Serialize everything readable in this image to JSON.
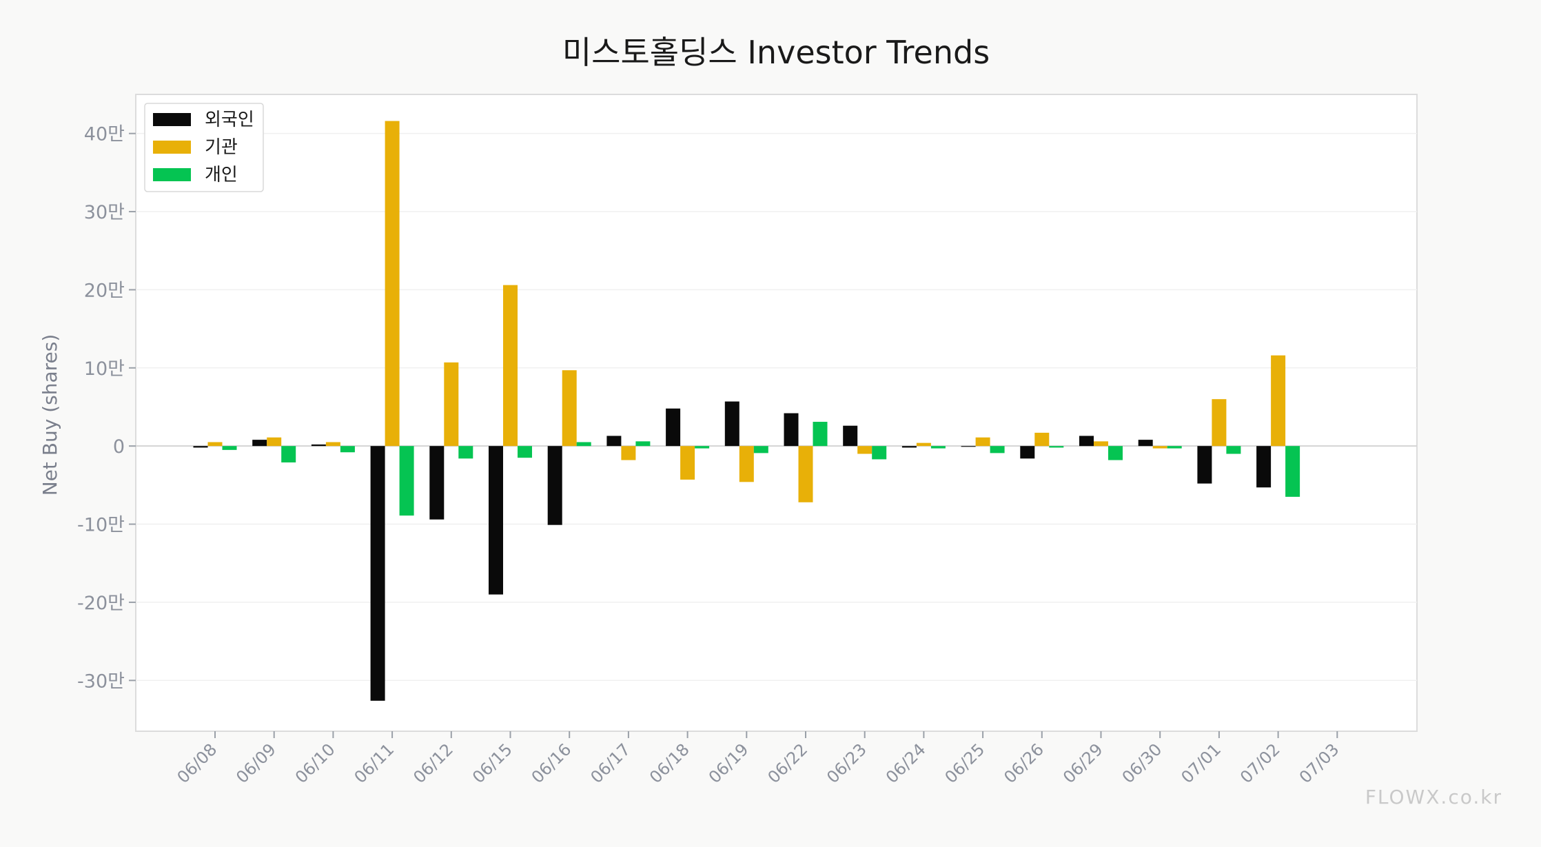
{
  "watermark": "FLOWX.co.kr",
  "chart_data": {
    "type": "bar",
    "title": "미스토홀딩스 Investor Trends",
    "xlabel": "",
    "ylabel": "Net Buy (shares)",
    "ylim": [
      -365000,
      450000
    ],
    "yticks": [
      {
        "value": 400000,
        "label": "40만"
      },
      {
        "value": 300000,
        "label": "30만"
      },
      {
        "value": 200000,
        "label": "20만"
      },
      {
        "value": 100000,
        "label": "10만"
      },
      {
        "value": 0,
        "label": "0"
      },
      {
        "value": -100000,
        "label": "-10만"
      },
      {
        "value": -200000,
        "label": "-20만"
      },
      {
        "value": -300000,
        "label": "-30만"
      }
    ],
    "grid": true,
    "legend_position": "top-left",
    "categories": [
      "06/08",
      "06/09",
      "06/10",
      "06/11",
      "06/12",
      "06/15",
      "06/16",
      "06/17",
      "06/18",
      "06/19",
      "06/22",
      "06/23",
      "06/24",
      "06/25",
      "06/26",
      "06/29",
      "06/30",
      "07/01",
      "07/02",
      "07/03"
    ],
    "series": [
      {
        "name": "외국인",
        "color": "#0a0a0a",
        "values": [
          -2000,
          8000,
          2000,
          -326000,
          -94000,
          -190000,
          -101000,
          13000,
          48000,
          57000,
          42000,
          26000,
          -2000,
          -1000,
          -16000,
          13000,
          8000,
          -48000,
          -53000,
          null
        ]
      },
      {
        "name": "기관",
        "color": "#e8b008",
        "values": [
          5000,
          11000,
          5000,
          416000,
          107000,
          206000,
          97000,
          -18000,
          -43000,
          -46000,
          -72000,
          -10000,
          4000,
          11000,
          17000,
          6000,
          -3000,
          60000,
          116000,
          null
        ]
      },
      {
        "name": "개인",
        "color": "#05c452",
        "values": [
          -5000,
          -21000,
          -8000,
          -89000,
          -16000,
          -15000,
          5000,
          6000,
          -3000,
          -9000,
          31000,
          -17000,
          -3000,
          -9000,
          -2000,
          -18000,
          -3000,
          -10000,
          -65000,
          null
        ]
      }
    ]
  }
}
